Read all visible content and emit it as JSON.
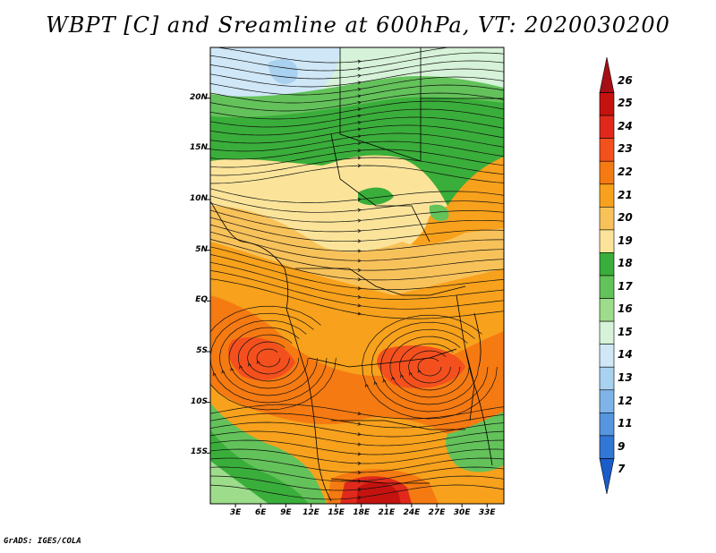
{
  "title": "WBPT [C] and Sreamline at 600hPa, VT: 2020030200",
  "credit": "GrADS: IGES/COLA",
  "lat_labels": [
    "20N",
    "15N",
    "10N",
    "5N",
    "EQ",
    "5S",
    "10S",
    "15S"
  ],
  "lon_labels": [
    "3E",
    "6E",
    "9E",
    "12E",
    "15E",
    "18E",
    "21E",
    "24E",
    "27E",
    "30E",
    "33E"
  ],
  "colorbar": {
    "labels": [
      "26",
      "25",
      "24",
      "23",
      "22",
      "21",
      "20",
      "19",
      "18",
      "17",
      "16",
      "15",
      "14",
      "13",
      "12",
      "11",
      "9",
      "7"
    ],
    "colors": [
      "#a50f15",
      "#c4120f",
      "#e0291b",
      "#f4501e",
      "#f57a12",
      "#f7a11c",
      "#f8c25a",
      "#fbe49a",
      "#3aae3a",
      "#63c25a",
      "#9ddc8b",
      "#d6f2d8",
      "#cfe7f7",
      "#a9d1f0",
      "#7eb4e8",
      "#5696de",
      "#3277d6",
      "#1a5cc8"
    ]
  },
  "map": {
    "lon_range": [
      0,
      35
    ],
    "lat_range": [
      -20,
      25
    ]
  }
}
